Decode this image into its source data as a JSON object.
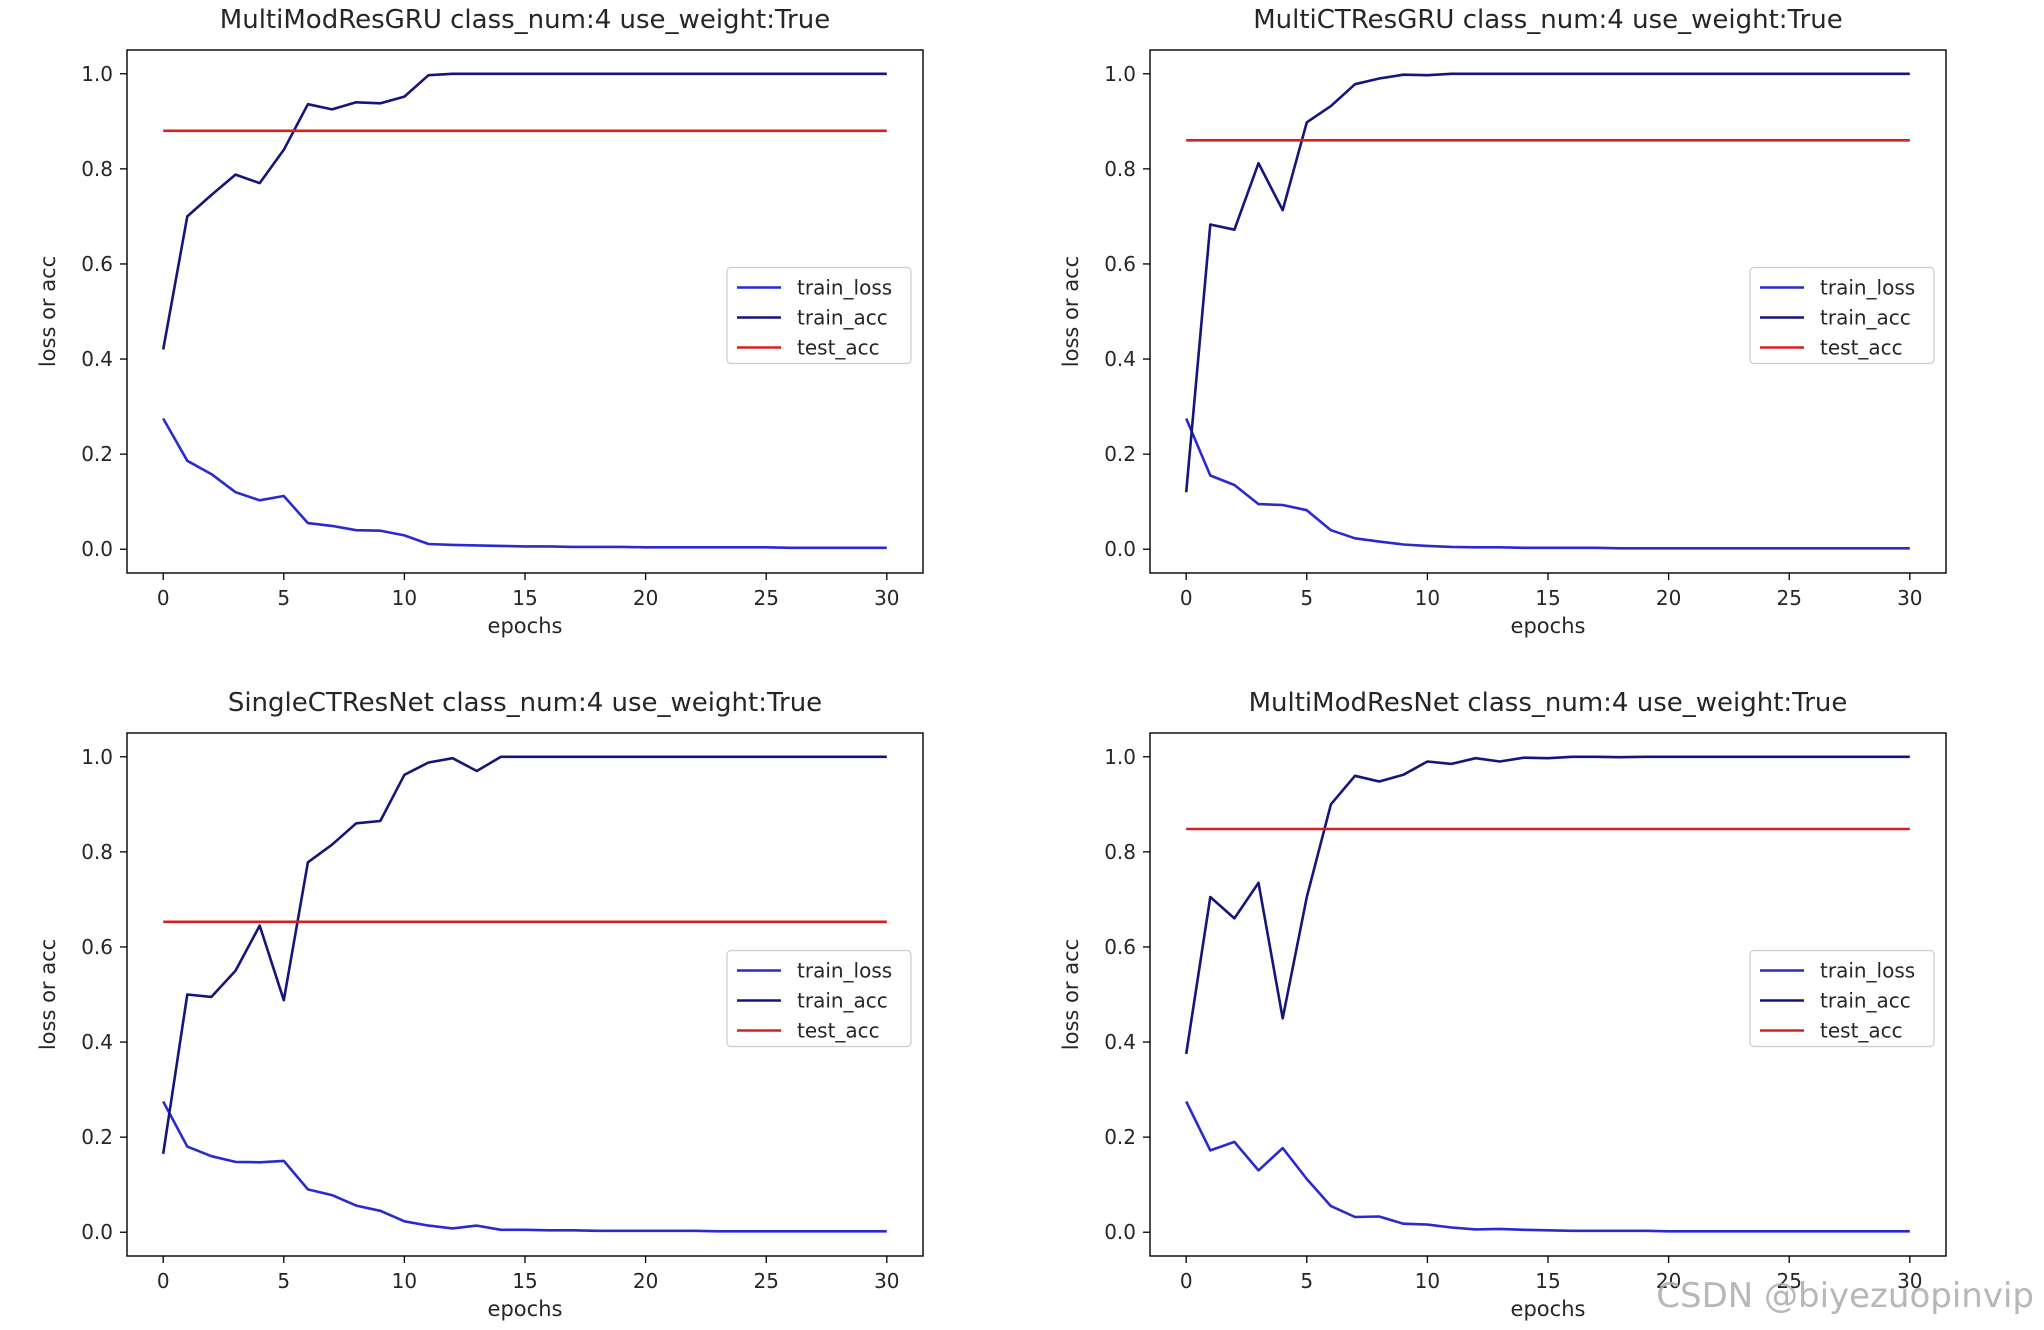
{
  "watermark": "CSDN @biyezuopinvip",
  "colors": {
    "train_loss": "#2a2ad0",
    "train_acc": "#15157a",
    "test_acc": "#d62020"
  },
  "chart_data": [
    {
      "type": "line",
      "title": "MultiModResGRU class_num:4 use_weight:True",
      "xlabel": "epochs",
      "ylabel": "loss or acc",
      "xlim": [
        -1.5,
        31.5
      ],
      "ylim": [
        -0.05,
        1.05
      ],
      "xticks": [
        0,
        5,
        10,
        15,
        20,
        25,
        30
      ],
      "yticks": [
        "0.0",
        "0.2",
        "0.4",
        "0.6",
        "0.8",
        "1.0"
      ],
      "legend_position": "center-right",
      "x": [
        0,
        1,
        2,
        3,
        4,
        5,
        6,
        7,
        8,
        9,
        10,
        11,
        12,
        13,
        14,
        15,
        16,
        17,
        18,
        19,
        20,
        21,
        22,
        23,
        24,
        25,
        26,
        27,
        28,
        29,
        30
      ],
      "series": [
        {
          "name": "train_loss",
          "values": [
            0.275,
            0.186,
            0.158,
            0.12,
            0.103,
            0.112,
            0.055,
            0.049,
            0.04,
            0.039,
            0.029,
            0.011,
            0.009,
            0.008,
            0.007,
            0.006,
            0.006,
            0.005,
            0.005,
            0.005,
            0.004,
            0.004,
            0.004,
            0.004,
            0.004,
            0.004,
            0.003,
            0.003,
            0.003,
            0.003,
            0.003
          ]
        },
        {
          "name": "train_acc",
          "values": [
            0.42,
            0.7,
            0.745,
            0.788,
            0.77,
            0.84,
            0.936,
            0.925,
            0.94,
            0.938,
            0.952,
            0.997,
            1.0,
            1.0,
            1.0,
            1.0,
            1.0,
            1.0,
            1.0,
            1.0,
            1.0,
            1.0,
            1.0,
            1.0,
            1.0,
            1.0,
            1.0,
            1.0,
            1.0,
            1.0,
            1.0
          ]
        },
        {
          "name": "test_acc",
          "values": [
            0.88,
            0.88,
            0.88,
            0.88,
            0.88,
            0.88,
            0.88,
            0.88,
            0.88,
            0.88,
            0.88,
            0.88,
            0.88,
            0.88,
            0.88,
            0.88,
            0.88,
            0.88,
            0.88,
            0.88,
            0.88,
            0.88,
            0.88,
            0.88,
            0.88,
            0.88,
            0.88,
            0.88,
            0.88,
            0.88,
            0.88
          ]
        }
      ]
    },
    {
      "type": "line",
      "title": "MultiCTResGRU class_num:4 use_weight:True",
      "xlabel": "epochs",
      "ylabel": "loss or acc",
      "xlim": [
        -1.5,
        31.5
      ],
      "ylim": [
        -0.05,
        1.05
      ],
      "xticks": [
        0,
        5,
        10,
        15,
        20,
        25,
        30
      ],
      "yticks": [
        "0.0",
        "0.2",
        "0.4",
        "0.6",
        "0.8",
        "1.0"
      ],
      "legend_position": "center-right",
      "x": [
        0,
        1,
        2,
        3,
        4,
        5,
        6,
        7,
        8,
        9,
        10,
        11,
        12,
        13,
        14,
        15,
        16,
        17,
        18,
        19,
        20,
        21,
        22,
        23,
        24,
        25,
        26,
        27,
        28,
        29,
        30
      ],
      "series": [
        {
          "name": "train_loss",
          "values": [
            0.275,
            0.155,
            0.135,
            0.095,
            0.093,
            0.082,
            0.04,
            0.023,
            0.016,
            0.01,
            0.007,
            0.005,
            0.004,
            0.004,
            0.003,
            0.003,
            0.003,
            0.003,
            0.002,
            0.002,
            0.002,
            0.002,
            0.002,
            0.002,
            0.002,
            0.002,
            0.002,
            0.002,
            0.002,
            0.002,
            0.002
          ]
        },
        {
          "name": "train_acc",
          "values": [
            0.12,
            0.683,
            0.672,
            0.812,
            0.713,
            0.898,
            0.932,
            0.978,
            0.99,
            0.998,
            0.997,
            1.0,
            1.0,
            1.0,
            1.0,
            1.0,
            1.0,
            1.0,
            1.0,
            1.0,
            1.0,
            1.0,
            1.0,
            1.0,
            1.0,
            1.0,
            1.0,
            1.0,
            1.0,
            1.0,
            1.0
          ]
        },
        {
          "name": "test_acc",
          "values": [
            0.86,
            0.86,
            0.86,
            0.86,
            0.86,
            0.86,
            0.86,
            0.86,
            0.86,
            0.86,
            0.86,
            0.86,
            0.86,
            0.86,
            0.86,
            0.86,
            0.86,
            0.86,
            0.86,
            0.86,
            0.86,
            0.86,
            0.86,
            0.86,
            0.86,
            0.86,
            0.86,
            0.86,
            0.86,
            0.86,
            0.86
          ]
        }
      ]
    },
    {
      "type": "line",
      "title": "SingleCTResNet class_num:4 use_weight:True",
      "xlabel": "epochs",
      "ylabel": "loss or acc",
      "xlim": [
        -1.5,
        31.5
      ],
      "ylim": [
        -0.05,
        1.05
      ],
      "xticks": [
        0,
        5,
        10,
        15,
        20,
        25,
        30
      ],
      "yticks": [
        "0.0",
        "0.2",
        "0.4",
        "0.6",
        "0.8",
        "1.0"
      ],
      "legend_position": "center-right",
      "x": [
        0,
        1,
        2,
        3,
        4,
        5,
        6,
        7,
        8,
        9,
        10,
        11,
        12,
        13,
        14,
        15,
        16,
        17,
        18,
        19,
        20,
        21,
        22,
        23,
        24,
        25,
        26,
        27,
        28,
        29,
        30
      ],
      "series": [
        {
          "name": "train_loss",
          "values": [
            0.275,
            0.18,
            0.16,
            0.148,
            0.147,
            0.15,
            0.09,
            0.078,
            0.056,
            0.045,
            0.023,
            0.014,
            0.008,
            0.014,
            0.005,
            0.005,
            0.004,
            0.004,
            0.003,
            0.003,
            0.003,
            0.003,
            0.003,
            0.002,
            0.002,
            0.002,
            0.002,
            0.002,
            0.002,
            0.002,
            0.002
          ]
        },
        {
          "name": "train_acc",
          "values": [
            0.165,
            0.5,
            0.495,
            0.55,
            0.645,
            0.488,
            0.778,
            0.815,
            0.86,
            0.865,
            0.962,
            0.988,
            0.997,
            0.97,
            1.0,
            1.0,
            1.0,
            1.0,
            1.0,
            1.0,
            1.0,
            1.0,
            1.0,
            1.0,
            1.0,
            1.0,
            1.0,
            1.0,
            1.0,
            1.0,
            1.0
          ]
        },
        {
          "name": "test_acc",
          "values": [
            0.653,
            0.653,
            0.653,
            0.653,
            0.653,
            0.653,
            0.653,
            0.653,
            0.653,
            0.653,
            0.653,
            0.653,
            0.653,
            0.653,
            0.653,
            0.653,
            0.653,
            0.653,
            0.653,
            0.653,
            0.653,
            0.653,
            0.653,
            0.653,
            0.653,
            0.653,
            0.653,
            0.653,
            0.653,
            0.653,
            0.653
          ]
        }
      ]
    },
    {
      "type": "line",
      "title": "MultiModResNet class_num:4 use_weight:True",
      "xlabel": "epochs",
      "ylabel": "loss or acc",
      "xlim": [
        -1.5,
        31.5
      ],
      "ylim": [
        -0.05,
        1.05
      ],
      "xticks": [
        0,
        5,
        10,
        15,
        20,
        25,
        30
      ],
      "yticks": [
        "0.0",
        "0.2",
        "0.4",
        "0.6",
        "0.8",
        "1.0"
      ],
      "legend_position": "center-right",
      "x": [
        0,
        1,
        2,
        3,
        4,
        5,
        6,
        7,
        8,
        9,
        10,
        11,
        12,
        13,
        14,
        15,
        16,
        17,
        18,
        19,
        20,
        21,
        22,
        23,
        24,
        25,
        26,
        27,
        28,
        29,
        30
      ],
      "series": [
        {
          "name": "train_loss",
          "values": [
            0.275,
            0.172,
            0.19,
            0.13,
            0.177,
            0.112,
            0.055,
            0.032,
            0.033,
            0.018,
            0.016,
            0.01,
            0.006,
            0.007,
            0.005,
            0.004,
            0.003,
            0.003,
            0.003,
            0.003,
            0.002,
            0.002,
            0.002,
            0.002,
            0.002,
            0.002,
            0.002,
            0.002,
            0.002,
            0.002,
            0.002
          ]
        },
        {
          "name": "train_acc",
          "values": [
            0.375,
            0.705,
            0.66,
            0.735,
            0.45,
            0.705,
            0.9,
            0.96,
            0.948,
            0.962,
            0.99,
            0.985,
            0.997,
            0.99,
            0.998,
            0.997,
            1.0,
            1.0,
            0.999,
            1.0,
            1.0,
            1.0,
            1.0,
            1.0,
            1.0,
            1.0,
            1.0,
            1.0,
            1.0,
            1.0,
            1.0
          ]
        },
        {
          "name": "test_acc",
          "values": [
            0.848,
            0.848,
            0.848,
            0.848,
            0.848,
            0.848,
            0.848,
            0.848,
            0.848,
            0.848,
            0.848,
            0.848,
            0.848,
            0.848,
            0.848,
            0.848,
            0.848,
            0.848,
            0.848,
            0.848,
            0.848,
            0.848,
            0.848,
            0.848,
            0.848,
            0.848,
            0.848,
            0.848,
            0.848,
            0.848,
            0.848
          ]
        }
      ]
    }
  ]
}
